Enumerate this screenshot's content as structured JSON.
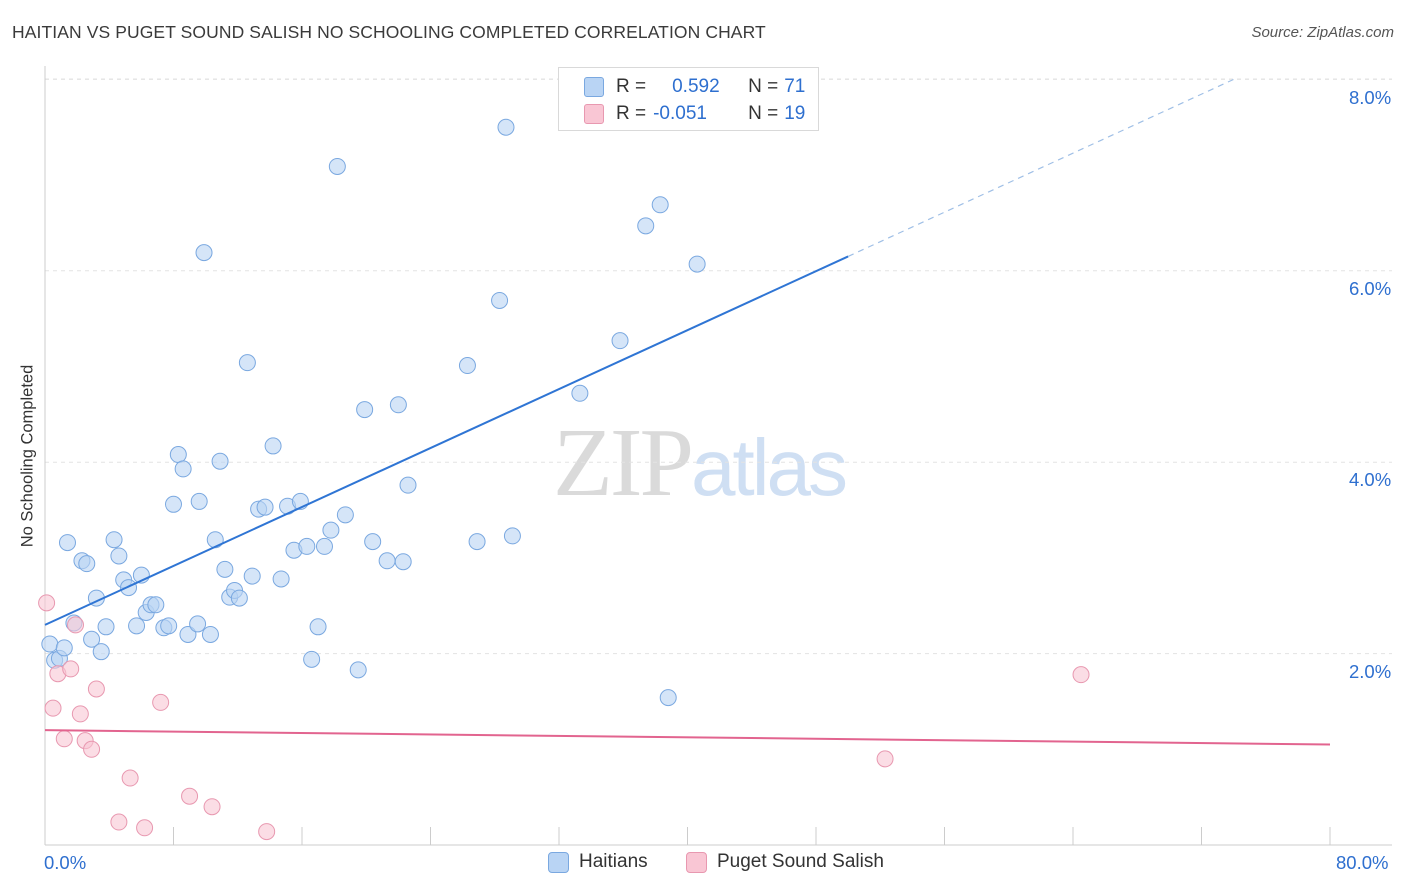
{
  "header": {
    "title": "HAITIAN VS PUGET SOUND SALISH NO SCHOOLING COMPLETED CORRELATION CHART",
    "source": "Source: ZipAtlas.com"
  },
  "watermark": {
    "zip": "ZIP",
    "atlas": "atlas"
  },
  "legend": {
    "r_label": "R =",
    "n_label": "N =",
    "rows": [
      {
        "series": "Haitians",
        "r": "0.592",
        "n": "71",
        "fill": "#b9d4f4",
        "stroke": "#7aa8e0"
      },
      {
        "series": "Puget Sound Salish",
        "r": "-0.051",
        "n": "19",
        "fill": "#f9c6d4",
        "stroke": "#e898b0"
      }
    ]
  },
  "bottom_legend": [
    "Haitians",
    "Puget Sound Salish"
  ],
  "chart_data": {
    "type": "scatter",
    "title": "HAITIAN VS PUGET SOUND SALISH NO SCHOOLING COMPLETED CORRELATION CHART",
    "xlabel": "",
    "ylabel": "No Schooling Completed",
    "xlim": [
      0,
      80
    ],
    "ylim": [
      0,
      8.2
    ],
    "x_tick_labels": [
      "0.0%",
      "80.0%"
    ],
    "y_ticks": [
      2,
      4,
      6,
      8
    ],
    "y_tick_labels": [
      "2.0%",
      "4.0%",
      "6.0%",
      "8.0%"
    ],
    "grid": true,
    "colors": {
      "blue": "#2f75d4",
      "pink": "#e2648f",
      "blue_fill": "#b9d4f4",
      "pink_fill": "#f9c6d4",
      "tick": "#2e6fcf"
    },
    "series": [
      {
        "name": "Haitians",
        "r": 0.592,
        "n": 71,
        "trend": {
          "x0": 0,
          "y0": 2.3,
          "x1": 50,
          "y1": 6.15,
          "dashed_to_x": 74,
          "dashed_to_y": 8.0
        },
        "points": [
          [
            0.3,
            2.1
          ],
          [
            0.6,
            1.93
          ],
          [
            0.9,
            1.95
          ],
          [
            1.2,
            2.06
          ],
          [
            1.4,
            3.16
          ],
          [
            1.8,
            2.32
          ],
          [
            2.3,
            2.97
          ],
          [
            2.6,
            2.94
          ],
          [
            2.9,
            2.15
          ],
          [
            3.2,
            2.58
          ],
          [
            3.5,
            2.02
          ],
          [
            3.8,
            2.28
          ],
          [
            4.3,
            3.19
          ],
          [
            4.6,
            3.02
          ],
          [
            4.9,
            2.77
          ],
          [
            5.2,
            2.69
          ],
          [
            5.7,
            2.29
          ],
          [
            6.0,
            2.82
          ],
          [
            6.3,
            2.43
          ],
          [
            6.6,
            2.51
          ],
          [
            6.9,
            2.51
          ],
          [
            7.4,
            2.27
          ],
          [
            7.7,
            2.29
          ],
          [
            8.0,
            3.56
          ],
          [
            8.3,
            4.08
          ],
          [
            8.6,
            3.93
          ],
          [
            8.9,
            2.2
          ],
          [
            9.5,
            2.31
          ],
          [
            9.6,
            3.59
          ],
          [
            9.9,
            6.19
          ],
          [
            10.3,
            2.2
          ],
          [
            10.6,
            3.19
          ],
          [
            10.9,
            4.01
          ],
          [
            11.2,
            2.88
          ],
          [
            11.5,
            2.59
          ],
          [
            11.8,
            2.66
          ],
          [
            12.1,
            2.58
          ],
          [
            12.6,
            5.04
          ],
          [
            12.9,
            2.81
          ],
          [
            13.3,
            3.51
          ],
          [
            13.7,
            3.53
          ],
          [
            14.2,
            4.17
          ],
          [
            14.7,
            2.78
          ],
          [
            15.1,
            3.54
          ],
          [
            15.5,
            3.08
          ],
          [
            15.9,
            3.59
          ],
          [
            16.3,
            3.12
          ],
          [
            16.6,
            1.94
          ],
          [
            17.0,
            2.28
          ],
          [
            17.4,
            3.12
          ],
          [
            17.8,
            3.29
          ],
          [
            18.2,
            7.09
          ],
          [
            18.7,
            3.45
          ],
          [
            19.5,
            1.83
          ],
          [
            19.9,
            4.55
          ],
          [
            20.4,
            3.17
          ],
          [
            21.3,
            2.97
          ],
          [
            22.0,
            4.6
          ],
          [
            22.3,
            2.96
          ],
          [
            22.6,
            3.76
          ],
          [
            26.3,
            5.01
          ],
          [
            26.9,
            3.17
          ],
          [
            28.3,
            5.69
          ],
          [
            28.7,
            7.5
          ],
          [
            29.1,
            3.23
          ],
          [
            33.3,
            4.72
          ],
          [
            35.8,
            5.27
          ],
          [
            37.4,
            6.47
          ],
          [
            38.3,
            6.69
          ],
          [
            40.6,
            6.07
          ],
          [
            38.8,
            1.54
          ]
        ]
      },
      {
        "name": "Puget Sound Salish",
        "r": -0.051,
        "n": 19,
        "trend": {
          "x0": 0,
          "y0": 1.2,
          "x1": 80,
          "y1": 1.05
        },
        "points": [
          [
            0.1,
            2.53
          ],
          [
            0.5,
            1.43
          ],
          [
            0.8,
            1.79
          ],
          [
            1.2,
            1.11
          ],
          [
            1.6,
            1.84
          ],
          [
            1.9,
            2.3
          ],
          [
            2.2,
            1.37
          ],
          [
            2.5,
            1.09
          ],
          [
            2.9,
            1.0
          ],
          [
            3.2,
            1.63
          ],
          [
            4.6,
            0.24
          ],
          [
            5.3,
            0.7
          ],
          [
            6.2,
            0.18
          ],
          [
            7.2,
            1.49
          ],
          [
            9.0,
            0.51
          ],
          [
            10.4,
            0.4
          ],
          [
            13.8,
            0.14
          ],
          [
            52.3,
            0.9
          ],
          [
            64.5,
            1.78
          ]
        ]
      }
    ]
  }
}
